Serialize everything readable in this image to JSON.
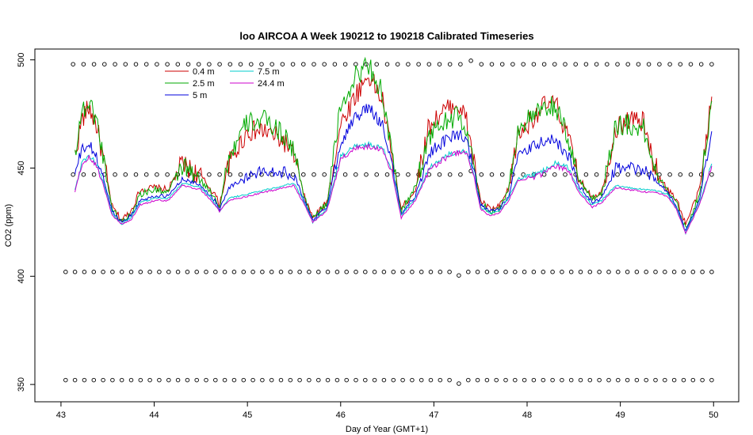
{
  "chart_data": {
    "type": "line",
    "title": "loo AIRCOA A  Week 190212 to 190218  Calibrated Timeseries",
    "xlabel": "Day of Year (GMT+1)",
    "ylabel": "CO2 (ppm)",
    "xlim": [
      42.72,
      50.27
    ],
    "ylim": [
      342,
      505
    ],
    "x_ticks": [
      43,
      44,
      45,
      46,
      47,
      48,
      49,
      50
    ],
    "y_ticks": [
      350,
      400,
      450,
      500
    ],
    "legend_position": "top-left",
    "series": [
      {
        "name": "0.4 m",
        "color": "#cc0000",
        "profile": "high",
        "x": [
          43.15,
          43.22,
          43.3,
          43.38,
          43.45,
          43.55,
          43.65,
          43.75,
          43.85,
          44.0,
          44.15,
          44.3,
          44.5,
          44.65,
          44.7,
          44.8,
          45.0,
          45.2,
          45.4,
          45.5,
          45.6,
          45.7,
          45.85,
          46.0,
          46.15,
          46.3,
          46.45,
          46.55,
          46.65,
          46.8,
          46.95,
          47.1,
          47.25,
          47.35,
          47.42,
          47.5,
          47.6,
          47.7,
          47.8,
          47.9,
          48.0,
          48.15,
          48.3,
          48.45,
          48.55,
          48.7,
          48.8,
          48.95,
          49.1,
          49.25,
          49.35,
          49.5,
          49.6,
          49.7,
          49.85,
          49.98
        ],
        "values": [
          455,
          472,
          478,
          470,
          455,
          432,
          426,
          430,
          440,
          441,
          440,
          452,
          446,
          438,
          433,
          452,
          467,
          467,
          462,
          456,
          438,
          427,
          434,
          470,
          483,
          493,
          481,
          455,
          431,
          440,
          470,
          476,
          480,
          472,
          455,
          435,
          431,
          432,
          440,
          465,
          470,
          478,
          480,
          463,
          445,
          437,
          439,
          468,
          473,
          471,
          453,
          440,
          436,
          424,
          440,
          483
        ]
      },
      {
        "name": "2.5 m",
        "color": "#00aa00",
        "profile": "high",
        "x": [
          43.15,
          43.22,
          43.3,
          43.38,
          43.45,
          43.55,
          43.65,
          43.75,
          43.85,
          44.0,
          44.15,
          44.3,
          44.5,
          44.65,
          44.7,
          44.8,
          45.0,
          45.2,
          45.4,
          45.5,
          45.6,
          45.7,
          45.85,
          46.0,
          46.15,
          46.3,
          46.45,
          46.55,
          46.65,
          46.8,
          46.95,
          47.1,
          47.25,
          47.35,
          47.42,
          47.5,
          47.6,
          47.7,
          47.8,
          47.9,
          48.0,
          48.15,
          48.3,
          48.45,
          48.55,
          48.7,
          48.8,
          48.95,
          49.1,
          49.25,
          49.35,
          49.5,
          49.6,
          49.7,
          49.85,
          49.98
        ],
        "values": [
          457,
          476,
          480,
          473,
          456,
          431,
          425,
          429,
          438,
          440,
          439,
          451,
          444,
          437,
          432,
          455,
          471,
          472,
          465,
          458,
          438,
          427,
          433,
          478,
          492,
          498,
          484,
          455,
          430,
          441,
          465,
          471,
          474,
          467,
          453,
          434,
          430,
          431,
          440,
          468,
          472,
          476,
          479,
          462,
          445,
          436,
          438,
          470,
          470,
          468,
          452,
          440,
          434,
          422,
          438,
          481
        ]
      },
      {
        "name": "5 m",
        "color": "#0000dd",
        "profile": "mid",
        "x": [
          43.15,
          43.22,
          43.3,
          43.38,
          43.45,
          43.55,
          43.65,
          43.75,
          43.85,
          44.0,
          44.15,
          44.3,
          44.5,
          44.65,
          44.7,
          44.8,
          45.0,
          45.2,
          45.4,
          45.5,
          45.6,
          45.7,
          45.85,
          46.0,
          46.15,
          46.3,
          46.45,
          46.55,
          46.65,
          46.8,
          46.95,
          47.1,
          47.25,
          47.35,
          47.42,
          47.5,
          47.6,
          47.7,
          47.8,
          47.9,
          48.0,
          48.15,
          48.3,
          48.45,
          48.55,
          48.7,
          48.8,
          48.95,
          49.1,
          49.25,
          49.35,
          49.5,
          49.6,
          49.7,
          49.85,
          49.98
        ],
        "values": [
          447,
          458,
          461,
          455,
          446,
          430,
          425,
          428,
          435,
          437,
          437,
          445,
          442,
          435,
          431,
          441,
          446,
          449,
          448,
          447,
          436,
          426,
          432,
          462,
          473,
          478,
          470,
          452,
          429,
          437,
          457,
          462,
          466,
          463,
          450,
          433,
          430,
          431,
          437,
          455,
          458,
          462,
          463,
          455,
          442,
          434,
          436,
          450,
          450,
          449,
          446,
          439,
          433,
          421,
          436,
          467
        ]
      },
      {
        "name": "7.5 m",
        "color": "#00cccc",
        "profile": "low",
        "x": [
          43.15,
          43.22,
          43.3,
          43.38,
          43.45,
          43.55,
          43.65,
          43.75,
          43.85,
          44.0,
          44.15,
          44.3,
          44.5,
          44.65,
          44.7,
          44.8,
          45.0,
          45.2,
          45.4,
          45.5,
          45.6,
          45.7,
          45.85,
          46.0,
          46.15,
          46.3,
          46.45,
          46.55,
          46.65,
          46.8,
          46.95,
          47.1,
          47.25,
          47.35,
          47.42,
          47.5,
          47.6,
          47.7,
          47.8,
          47.9,
          48.0,
          48.15,
          48.3,
          48.45,
          48.55,
          48.7,
          48.8,
          48.95,
          49.1,
          49.25,
          49.35,
          49.5,
          49.6,
          49.7,
          49.85,
          49.98
        ],
        "values": [
          440,
          452,
          456,
          452,
          444,
          429,
          424,
          427,
          434,
          436,
          436,
          443,
          441,
          434,
          430,
          436,
          438,
          440,
          442,
          443,
          435,
          425,
          431,
          455,
          460,
          461,
          459,
          449,
          428,
          436,
          450,
          455,
          458,
          458,
          449,
          432,
          429,
          430,
          436,
          445,
          446,
          448,
          452,
          450,
          440,
          433,
          435,
          442,
          441,
          440,
          440,
          438,
          432,
          420,
          434,
          452
        ]
      },
      {
        "name": "24.4 m",
        "color": "#cc00cc",
        "profile": "low",
        "x": [
          43.15,
          43.22,
          43.3,
          43.38,
          43.45,
          43.55,
          43.65,
          43.75,
          43.85,
          44.0,
          44.15,
          44.3,
          44.5,
          44.65,
          44.7,
          44.8,
          45.0,
          45.2,
          45.4,
          45.5,
          45.6,
          45.7,
          45.85,
          46.0,
          46.15,
          46.3,
          46.45,
          46.55,
          46.65,
          46.8,
          46.95,
          47.1,
          47.25,
          47.35,
          47.42,
          47.5,
          47.6,
          47.7,
          47.8,
          47.9,
          48.0,
          48.15,
          48.3,
          48.45,
          48.55,
          48.7,
          48.8,
          48.95,
          49.1,
          49.25,
          49.35,
          49.5,
          49.6,
          49.7,
          49.85,
          49.98
        ],
        "values": [
          439,
          451,
          455,
          451,
          443,
          428,
          424,
          426,
          433,
          435,
          435,
          442,
          440,
          433,
          430,
          435,
          437,
          439,
          441,
          442,
          434,
          425,
          430,
          454,
          459,
          460,
          458,
          448,
          427,
          435,
          449,
          454,
          457,
          457,
          448,
          431,
          428,
          429,
          435,
          444,
          445,
          447,
          451,
          449,
          439,
          432,
          434,
          441,
          440,
          439,
          439,
          437,
          431,
          420,
          433,
          451
        ]
      }
    ],
    "marker_rows": [
      {
        "y": 498,
        "x_start": 43.13,
        "x_end": 49.98,
        "count": 62
      },
      {
        "y": 447,
        "x_start": 43.13,
        "x_end": 49.98,
        "count": 62
      },
      {
        "y": 402,
        "x_start": 43.05,
        "x_end": 49.98,
        "count": 70
      },
      {
        "y": 352,
        "x_start": 43.05,
        "x_end": 49.98,
        "count": 70
      }
    ]
  }
}
